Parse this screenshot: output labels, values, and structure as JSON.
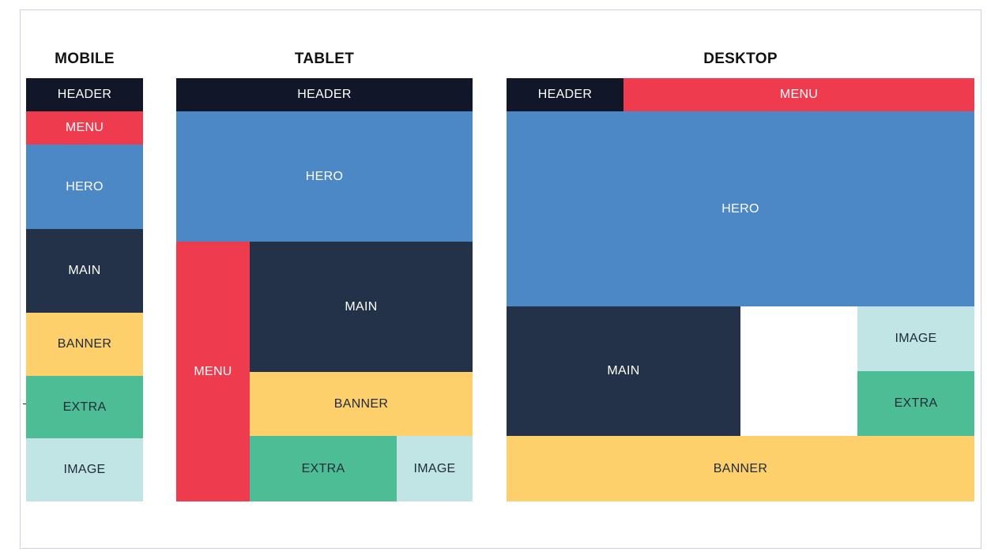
{
  "columns": {
    "mobile": {
      "title": "MOBILE",
      "blocks": {
        "header": "HEADER",
        "menu": "MENU",
        "hero": "HERO",
        "main": "MAIN",
        "banner": "BANNER",
        "extra": "EXTRA",
        "image": "IMAGE"
      }
    },
    "tablet": {
      "title": "TABLET",
      "blocks": {
        "header": "HEADER",
        "hero": "HERO",
        "menu": "MENU",
        "main": "MAIN",
        "banner": "BANNER",
        "extra": "EXTRA",
        "image": "IMAGE"
      }
    },
    "desktop": {
      "title": "DESKTOP",
      "blocks": {
        "header": "HEADER",
        "menu": "MENU",
        "hero": "HERO",
        "main": "MAIN",
        "image": "IMAGE",
        "extra": "EXTRA",
        "banner": "BANNER"
      }
    }
  },
  "colors": {
    "header": "#111729",
    "menu": "#ef3b4e",
    "hero": "#4d88c6",
    "main": "#243249",
    "banner": "#fdd06b",
    "extra": "#4cbd94",
    "image": "#c1e4e4"
  }
}
